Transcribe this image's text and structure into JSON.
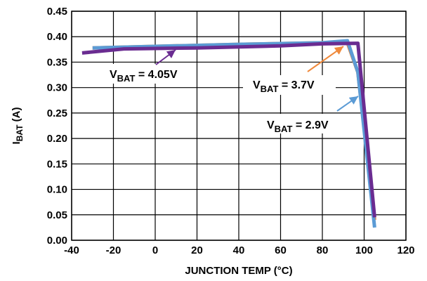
{
  "chart_data": {
    "type": "line",
    "title": "",
    "xlabel": "JUNCTION TEMP (°C)",
    "ylabel": {
      "main": "I",
      "sub": "BAT",
      "suffix": " (A)"
    },
    "xlim": [
      -40,
      120
    ],
    "ylim": [
      0,
      0.45
    ],
    "x_ticks": [
      -40,
      -20,
      0,
      20,
      40,
      60,
      80,
      100,
      120
    ],
    "x_tick_labels": [
      "-40",
      "-20",
      "0",
      "20",
      "40",
      "60",
      "80",
      "100",
      "120"
    ],
    "y_ticks": [
      0,
      0.05,
      0.1,
      0.15,
      0.2,
      0.25,
      0.3,
      0.35,
      0.4,
      0.45
    ],
    "y_tick_labels": [
      "0.00",
      "0.05",
      "0.10",
      "0.15",
      "0.20",
      "0.25",
      "0.30",
      "0.35",
      "0.40",
      "0.45"
    ],
    "grid": true,
    "series": [
      {
        "color": "#f08a3c",
        "x": [
          -30,
          0,
          40,
          80,
          92,
          97,
          105
        ],
        "y": [
          0.378,
          0.381,
          0.385,
          0.388,
          0.388,
          0.33,
          0.04
        ]
      },
      {
        "color": "#5b9bd5",
        "x": [
          -30,
          0,
          40,
          80,
          92,
          97,
          105
        ],
        "y": [
          0.378,
          0.381,
          0.385,
          0.388,
          0.392,
          0.33,
          0.025
        ]
      },
      {
        "color": "#6a2c91",
        "x": [
          -35,
          -15,
          20,
          60,
          80,
          97,
          105
        ],
        "y": [
          0.368,
          0.376,
          0.378,
          0.382,
          0.386,
          0.387,
          0.045
        ]
      }
    ],
    "annotations": [
      {
        "main": "V",
        "sub": "BAT",
        "rest": " = 4.05V",
        "color": "#6a2c91"
      },
      {
        "main": "V",
        "sub": "BAT",
        "rest": " = 3.7V",
        "color": "#f08a3c"
      },
      {
        "main": "V",
        "sub": "BAT",
        "rest": " = 2.9V",
        "color": "#5b9bd5"
      }
    ]
  }
}
